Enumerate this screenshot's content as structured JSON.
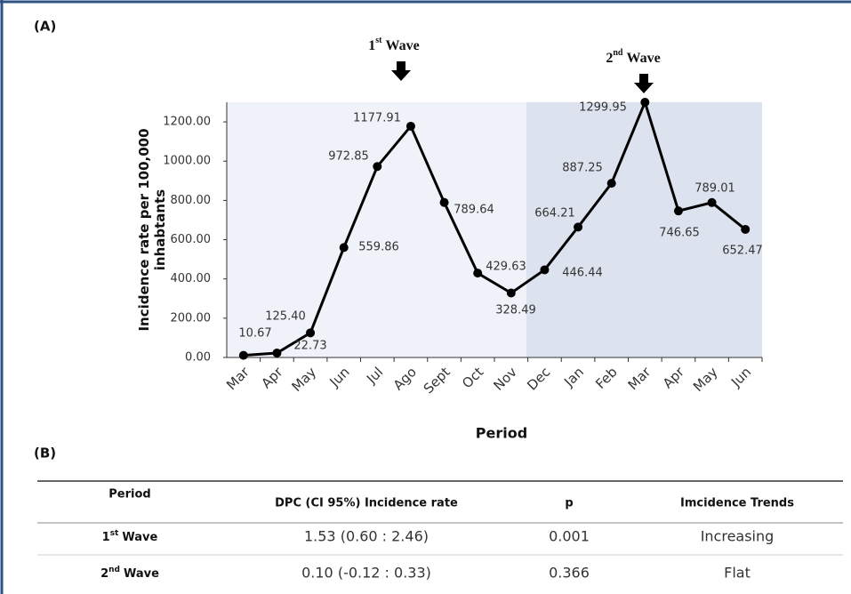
{
  "panel_a_label": "(A)",
  "chart_data": {
    "type": "line",
    "ylabel": [
      "Incidence rate per 100,000",
      "inhabtants"
    ],
    "xlabel": "Period",
    "categories": [
      "Mar",
      "Apr",
      "May",
      "Jun",
      "Jul",
      "Ago",
      "Sept",
      "Oct",
      "Nov",
      "Dec",
      "Jan",
      "Feb",
      "Mar",
      "Apr",
      "May",
      "Jun"
    ],
    "series": [
      {
        "color": "#000000",
        "values": [
          10.67,
          22.73,
          125.4,
          559.86,
          972.85,
          1177.91,
          789.64,
          429.63,
          328.49,
          446.44,
          664.21,
          887.25,
          1299.95,
          746.65,
          789.01,
          652.47
        ],
        "value_labels": [
          "10.67",
          "22.73",
          "125.40",
          "559.86",
          "972.85",
          "1177.91",
          "789.64",
          "429.63",
          "328.49",
          "446.44",
          "664.21",
          "887.25",
          "1299.95",
          "746.65",
          "789.01",
          "652.47"
        ]
      }
    ],
    "ylim": [
      0,
      1300
    ],
    "yticks": [
      {
        "value": 0,
        "label": "0.00"
      },
      {
        "value": 200,
        "label": "200.00"
      },
      {
        "value": 400,
        "label": "400.00"
      },
      {
        "value": 600,
        "label": "600.00"
      },
      {
        "value": 800,
        "label": "800.00"
      },
      {
        "value": 1000,
        "label": "1000.00"
      },
      {
        "value": 1200,
        "label": "1200.00"
      }
    ],
    "annotations": [
      {
        "number": "1",
        "suffix": "st",
        "text": "Wave"
      },
      {
        "number": "2",
        "suffix": "nd",
        "text": "Wave"
      }
    ]
  },
  "panel_b_label": "(B)",
  "table": {
    "header": [
      "Period",
      "DPC (CI 95%) Incidence rate",
      "p",
      "Imcidence Trends"
    ],
    "rows": [
      [
        {
          "number": "1",
          "suffix": "st",
          "text": "Wave"
        },
        "1.53 (0.60 : 2.46)",
        "0.001",
        "Increasing"
      ],
      [
        {
          "number": "2",
          "suffix": "nd",
          "text": "Wave"
        },
        "0.10 (-0.12 : 0.33)",
        "0.366",
        "Flat"
      ]
    ]
  }
}
